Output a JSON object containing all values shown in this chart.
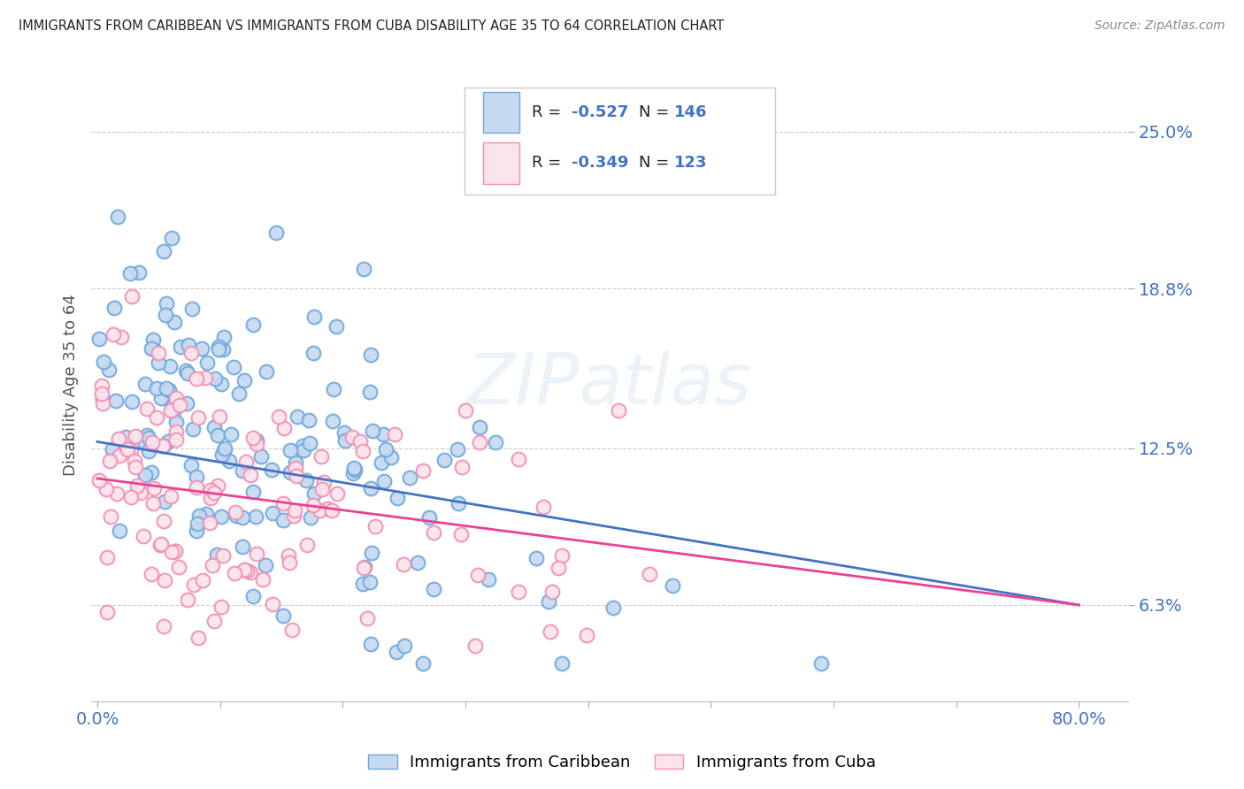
{
  "title": "IMMIGRANTS FROM CARIBBEAN VS IMMIGRANTS FROM CUBA DISABILITY AGE 35 TO 64 CORRELATION CHART",
  "source": "Source: ZipAtlas.com",
  "ylabel": "Disability Age 35 to 64",
  "y_ticks": [
    0.063,
    0.125,
    0.188,
    0.25
  ],
  "y_tick_labels": [
    "6.3%",
    "12.5%",
    "18.8%",
    "25.0%"
  ],
  "series1_face_color": "#c5d9f1",
  "series1_edge_color": "#6fa8dc",
  "series2_face_color": "#fce4ec",
  "series2_edge_color": "#f48fb1",
  "line1_color": "#4472c4",
  "line2_color": "#e84393",
  "R1": -0.527,
  "N1": 146,
  "R2": -0.349,
  "N2": 123,
  "legend_label1": "Immigrants from Caribbean",
  "legend_label2": "Immigrants from Cuba",
  "title_color": "#222222",
  "source_color": "#888888",
  "axis_tick_color": "#4472c4",
  "background_color": "#ffffff",
  "grid_color": "#cccccc",
  "watermark": "ZIPatlas",
  "line1_x0": 0.0,
  "line1_y0": 0.1275,
  "line1_x1": 0.8,
  "line1_y1": 0.063,
  "line2_x0": 0.0,
  "line2_y0": 0.113,
  "line2_x1": 0.8,
  "line2_y1": 0.063,
  "ylim_min": 0.025,
  "ylim_max": 0.275,
  "xlim_min": -0.005,
  "xlim_max": 0.84
}
